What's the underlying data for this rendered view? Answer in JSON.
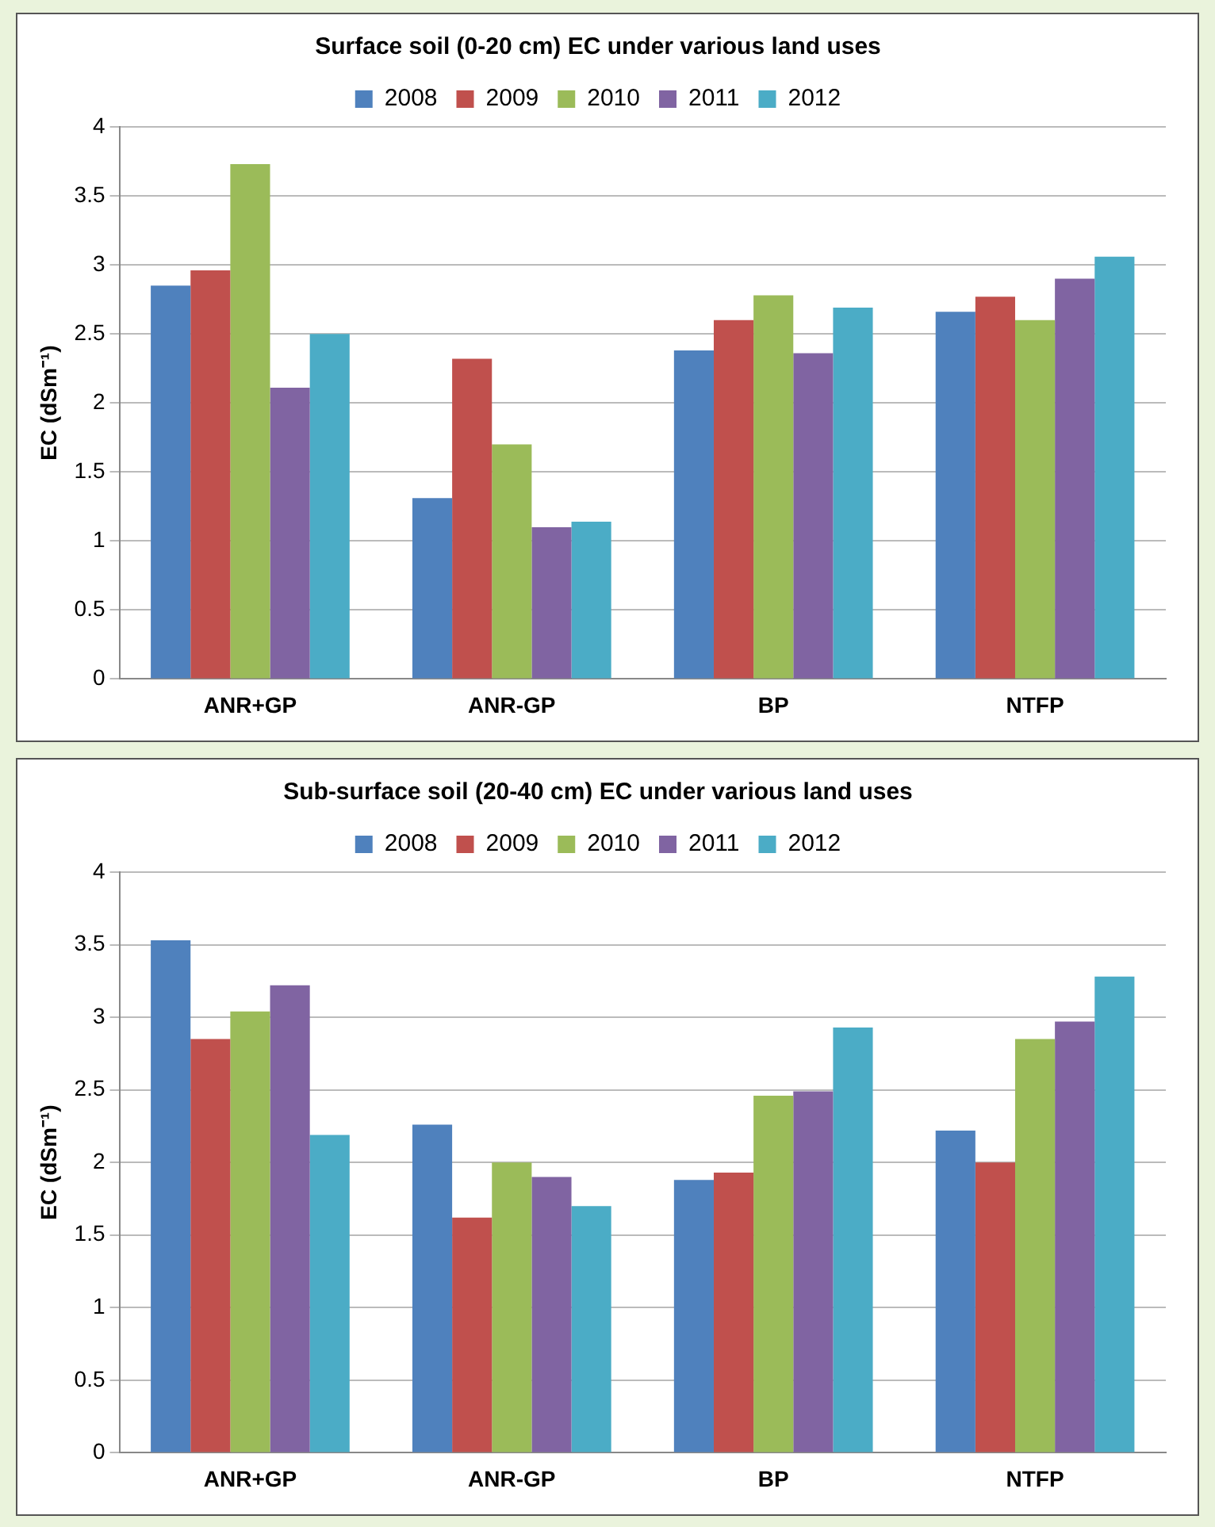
{
  "chart_data": [
    {
      "type": "bar",
      "title": "Surface soil (0-20 cm) EC under various land uses",
      "ylabel": "EC (dSm⁻¹)",
      "categories": [
        "ANR+GP",
        "ANR-GP",
        "BP",
        "NTFP"
      ],
      "series": [
        {
          "name": "2008",
          "color": "#4f81bd",
          "values": [
            2.85,
            1.31,
            2.38,
            2.66
          ]
        },
        {
          "name": "2009",
          "color": "#c0504d",
          "values": [
            2.96,
            2.32,
            2.6,
            2.77
          ]
        },
        {
          "name": "2010",
          "color": "#9bbb59",
          "values": [
            3.73,
            1.7,
            2.78,
            2.6
          ]
        },
        {
          "name": "2011",
          "color": "#8064a2",
          "values": [
            2.11,
            1.1,
            2.36,
            2.9
          ]
        },
        {
          "name": "2012",
          "color": "#4bacc6",
          "values": [
            2.5,
            1.14,
            2.69,
            3.06
          ]
        }
      ],
      "ylim": [
        0,
        4
      ],
      "yticks": [
        0,
        0.5,
        1,
        1.5,
        2,
        2.5,
        3,
        3.5,
        4
      ],
      "grid": "y",
      "legend": "top"
    },
    {
      "type": "bar",
      "title": "Sub-surface soil (20-40 cm) EC under various land uses",
      "ylabel": "EC (dSm⁻¹)",
      "categories": [
        "ANR+GP",
        "ANR-GP",
        "BP",
        "NTFP"
      ],
      "series": [
        {
          "name": "2008",
          "color": "#4f81bd",
          "values": [
            3.53,
            2.26,
            1.88,
            2.22
          ]
        },
        {
          "name": "2009",
          "color": "#c0504d",
          "values": [
            2.85,
            1.62,
            1.93,
            2.0
          ]
        },
        {
          "name": "2010",
          "color": "#9bbb59",
          "values": [
            3.04,
            2.0,
            2.46,
            2.85
          ]
        },
        {
          "name": "2011",
          "color": "#8064a2",
          "values": [
            3.22,
            1.9,
            2.49,
            2.97
          ]
        },
        {
          "name": "2012",
          "color": "#4bacc6",
          "values": [
            2.19,
            1.7,
            2.93,
            3.28
          ]
        }
      ],
      "ylim": [
        0,
        4
      ],
      "yticks": [
        0,
        0.5,
        1,
        1.5,
        2,
        2.5,
        3,
        3.5,
        4
      ],
      "grid": "y",
      "legend": "top"
    }
  ]
}
